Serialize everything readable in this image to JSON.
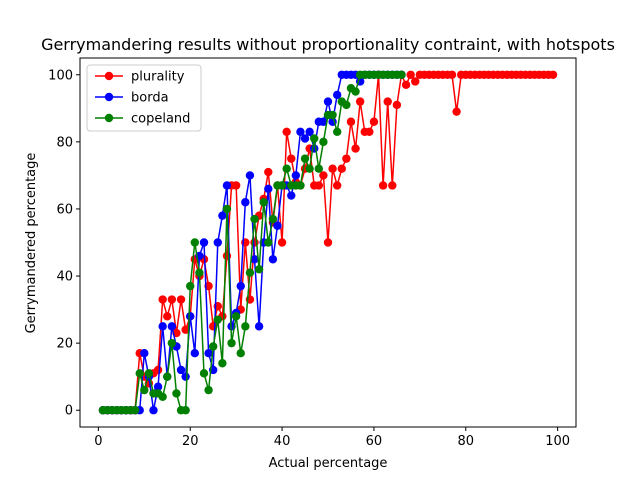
{
  "chart_data": {
    "type": "line",
    "title": "Gerrymandering results without proportionality contraint, with hotspots",
    "xlabel": "Actual percentage",
    "ylabel": "Gerrymandered percentage",
    "xlim": [
      -4,
      104
    ],
    "ylim": [
      -5,
      105
    ],
    "xticks": [
      0,
      20,
      40,
      60,
      80,
      100
    ],
    "yticks": [
      0,
      20,
      40,
      60,
      80,
      100
    ],
    "grid": false,
    "legend_position": "top-left",
    "series": [
      {
        "name": "plurality",
        "color": "#ff0000",
        "x": [
          1,
          2,
          3,
          4,
          5,
          6,
          7,
          8,
          9,
          10,
          11,
          12,
          13,
          14,
          15,
          16,
          17,
          18,
          19,
          20,
          21,
          22,
          23,
          24,
          25,
          26,
          27,
          28,
          29,
          30,
          31,
          32,
          33,
          34,
          35,
          36,
          37,
          38,
          39,
          40,
          41,
          42,
          43,
          44,
          45,
          46,
          47,
          48,
          49,
          50,
          51,
          52,
          53,
          54,
          55,
          56,
          57,
          58,
          59,
          60,
          61,
          62,
          63,
          64,
          65,
          66,
          67,
          68,
          69,
          70,
          71,
          72,
          73,
          74,
          75,
          76,
          77,
          78,
          79,
          80,
          81,
          82,
          83,
          84,
          85,
          86,
          87,
          88,
          89,
          90,
          91,
          92,
          93,
          94,
          95,
          96,
          97,
          98,
          99
        ],
        "y": [
          0,
          0,
          0,
          0,
          0,
          0,
          0,
          0,
          17,
          10,
          8,
          11,
          12,
          33,
          28,
          33,
          23,
          33,
          24,
          28,
          45,
          40,
          45,
          37,
          25,
          31,
          28,
          46,
          67,
          67,
          30,
          50,
          33,
          50,
          58,
          63,
          71,
          56,
          67,
          50,
          83,
          75,
          68,
          67,
          72,
          78,
          67,
          67,
          70,
          50,
          72,
          67,
          72,
          75,
          86,
          78,
          92,
          83,
          83,
          86,
          100,
          67,
          92,
          67,
          91,
          100,
          97,
          100,
          98,
          100,
          100,
          100,
          100,
          100,
          100,
          100,
          100,
          89,
          100,
          100,
          100,
          100,
          100,
          100,
          100,
          100,
          100,
          100,
          100,
          100,
          100,
          100,
          100,
          100,
          100,
          100,
          100,
          100,
          100
        ]
      },
      {
        "name": "borda",
        "color": "#0000ff",
        "x": [
          1,
          2,
          3,
          4,
          5,
          6,
          7,
          8,
          9,
          10,
          11,
          12,
          13,
          14,
          15,
          16,
          17,
          18,
          19,
          20,
          21,
          22,
          23,
          24,
          25,
          26,
          27,
          28,
          29,
          30,
          31,
          32,
          33,
          34,
          35,
          36,
          37,
          38,
          39,
          40,
          41,
          42,
          43,
          44,
          45,
          46,
          47,
          48,
          49,
          50,
          51,
          52,
          53,
          54,
          55,
          56,
          57,
          58,
          59,
          60,
          61,
          62,
          63,
          64,
          65,
          66
        ],
        "y": [
          0,
          0,
          0,
          0,
          0,
          0,
          0,
          0,
          0,
          17,
          10,
          0,
          7,
          25,
          10,
          25,
          19,
          12,
          10,
          28,
          17,
          46,
          50,
          17,
          12,
          50,
          58,
          67,
          25,
          29,
          37,
          62,
          70,
          45,
          25,
          50,
          66,
          45,
          55,
          67,
          67,
          64,
          70,
          83,
          81,
          83,
          78,
          86,
          86,
          92,
          86,
          94,
          100,
          100,
          100,
          100,
          98,
          100,
          100,
          100,
          100,
          100,
          100,
          100,
          100,
          100
        ]
      },
      {
        "name": "copeland",
        "color": "#008000",
        "x": [
          1,
          2,
          3,
          4,
          5,
          6,
          7,
          8,
          9,
          10,
          11,
          12,
          13,
          14,
          15,
          16,
          17,
          18,
          19,
          20,
          21,
          22,
          23,
          24,
          25,
          26,
          27,
          28,
          29,
          30,
          31,
          32,
          33,
          34,
          35,
          36,
          37,
          38,
          39,
          40,
          41,
          42,
          43,
          44,
          45,
          46,
          47,
          48,
          49,
          50,
          51,
          52,
          53,
          54,
          55,
          56,
          57,
          58,
          59,
          60,
          61,
          62,
          63,
          64,
          65,
          66
        ],
        "y": [
          0,
          0,
          0,
          0,
          0,
          0,
          0,
          0,
          11,
          6,
          11,
          5,
          5,
          4,
          10,
          20,
          5,
          0,
          0,
          37,
          50,
          41,
          11,
          6,
          19,
          27,
          14,
          60,
          20,
          28,
          17,
          25,
          41,
          57,
          42,
          62,
          50,
          57,
          67,
          67,
          72,
          67,
          67,
          67,
          75,
          72,
          81,
          72,
          80,
          88,
          88,
          83,
          92,
          91,
          96,
          95,
          100,
          100,
          100,
          100,
          100,
          100,
          100,
          100,
          100,
          100
        ]
      }
    ]
  }
}
